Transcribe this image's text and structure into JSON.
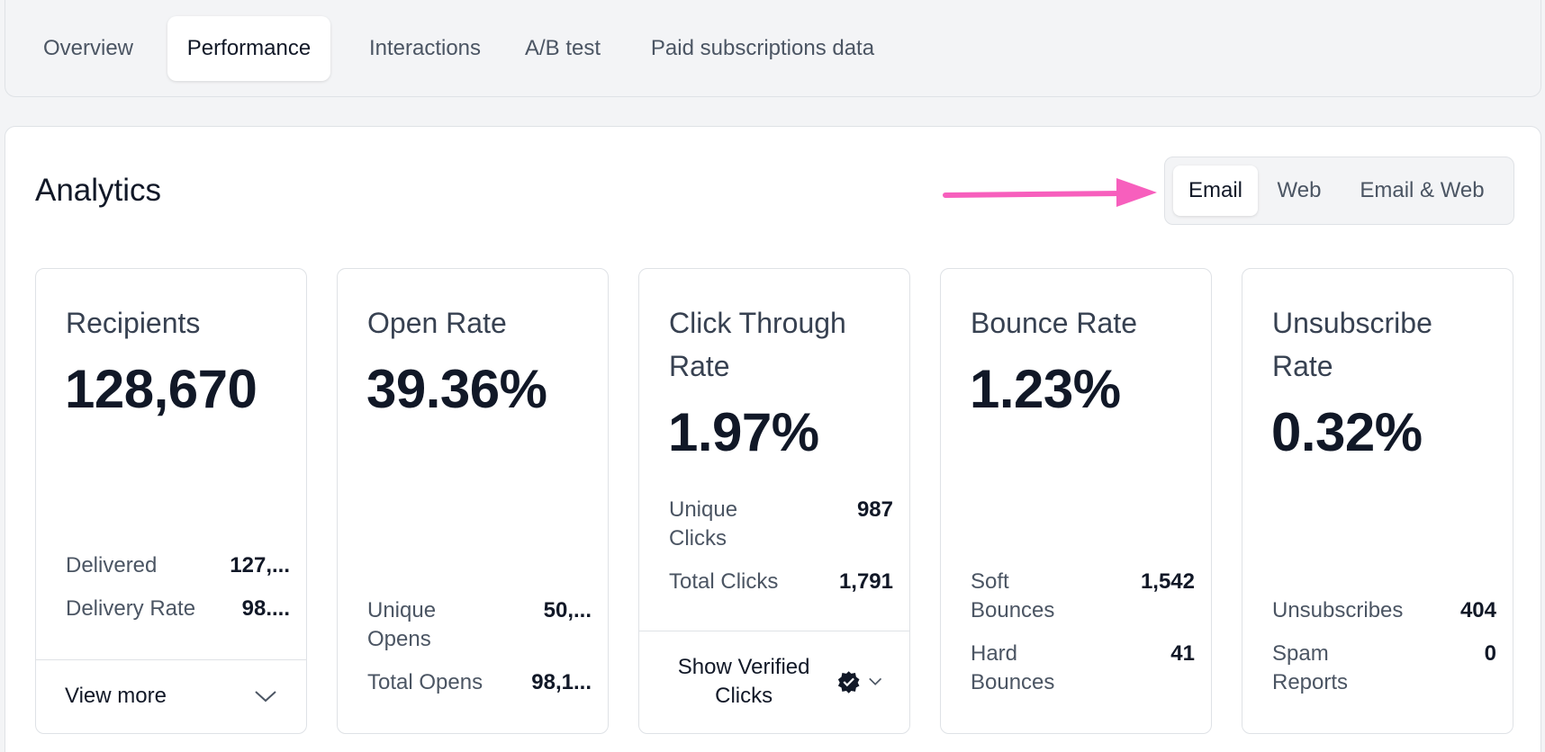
{
  "tabs": [
    "Overview",
    "Performance",
    "Interactions",
    "A/B test",
    "Paid subscriptions data"
  ],
  "analytics": {
    "title": "Analytics",
    "segments": [
      "Email",
      "Web",
      "Email & Web"
    ]
  },
  "cards": {
    "recipients": {
      "title": "Recipients",
      "value": "128,670",
      "stats": [
        {
          "label": "Delivered",
          "value": "127,..."
        },
        {
          "label": "Delivery Rate",
          "value": "98...."
        }
      ],
      "footer": "View more"
    },
    "open_rate": {
      "title": "Open Rate",
      "value": "39.36%",
      "stats": [
        {
          "label": "Unique Opens",
          "value": "50,..."
        },
        {
          "label": "Total Opens",
          "value": "98,1..."
        }
      ]
    },
    "click_through": {
      "title": "Click Through Rate",
      "value": "1.97%",
      "stats": [
        {
          "label": "Unique Clicks",
          "value": "987"
        },
        {
          "label": "Total Clicks",
          "value": "1,791"
        }
      ],
      "footer": "Show Verified Clicks"
    },
    "bounce_rate": {
      "title": "Bounce Rate",
      "value": "1.23%",
      "stats": [
        {
          "label": "Soft Bounces",
          "value": "1,542"
        },
        {
          "label": "Hard Bounces",
          "value": "41"
        }
      ]
    },
    "unsubscribe_rate": {
      "title": "Unsubscribe Rate",
      "value": "0.32%",
      "stats": [
        {
          "label": "Unsubscribes",
          "value": "404"
        },
        {
          "label": "Spam Reports",
          "value": "0"
        }
      ]
    }
  },
  "colors": {
    "annotation_arrow": "#f75fbd",
    "verified_badge": "#111827"
  }
}
